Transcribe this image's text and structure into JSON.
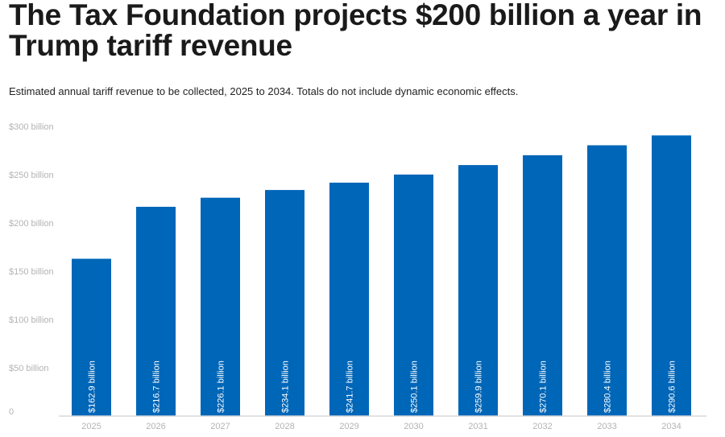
{
  "header": {
    "title": "The Tax Foundation projects $200 billion a year in Trump tariff revenue",
    "subtitle": "Estimated annual tariff revenue to be collected, 2025 to 2034. Totals do not include dynamic economic effects."
  },
  "chart_data": {
    "type": "bar",
    "title": "The Tax Foundation projects $200 billion a year in Trump tariff revenue",
    "subtitle": "Estimated annual tariff revenue to be collected, 2025 to 2034. Totals do not include dynamic economic effects.",
    "xlabel": "",
    "ylabel": "",
    "categories": [
      "2025",
      "2026",
      "2027",
      "2028",
      "2029",
      "2030",
      "2031",
      "2032",
      "2033",
      "2034"
    ],
    "values": [
      162.9,
      216.7,
      226.1,
      234.1,
      241.7,
      250.1,
      259.9,
      270.1,
      280.4,
      290.6
    ],
    "data_labels": [
      "$162.9 billion",
      "$216.7 billion",
      "$226.1 billion",
      "$234.1 billion",
      "$241.7 billion",
      "$250.1 billion",
      "$259.9 billion",
      "$270.1 billion",
      "$280.4 billion",
      "$290.6 billion"
    ],
    "units": "billion USD",
    "ylim": [
      0,
      300
    ],
    "yticks": [
      0,
      50,
      100,
      150,
      200,
      250,
      300
    ],
    "ytick_labels": [
      "0",
      "$50 billion",
      "$100 billion",
      "$150 billion",
      "$200 billion",
      "$250 billion",
      "$300 billion"
    ],
    "grid": false,
    "legend": "none",
    "bar_color": "#0066b8"
  }
}
